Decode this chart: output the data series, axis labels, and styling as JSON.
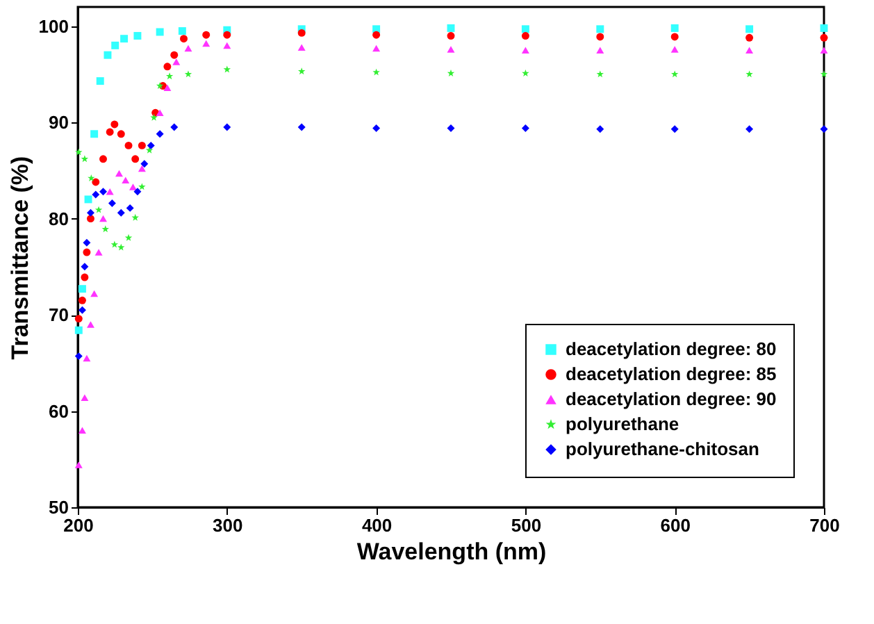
{
  "chart_data": {
    "type": "scatter",
    "xlabel": "Wavelength (nm)",
    "ylabel": "Transmittance (%)",
    "xlim": [
      200,
      700
    ],
    "ylim": [
      50,
      102
    ],
    "xticks": [
      200,
      300,
      400,
      500,
      600,
      700
    ],
    "yticks": [
      50,
      60,
      70,
      80,
      90,
      100
    ],
    "grid": false,
    "legend": "bottom right",
    "series": [
      {
        "name": "deacetylation degree: 80",
        "color": "#33ffff",
        "marker": "square",
        "x": [
          200.6,
          203,
          207,
          211,
          215,
          220,
          225,
          231,
          240,
          255,
          270,
          300,
          350,
          400,
          450,
          500,
          550,
          600,
          650,
          700
        ],
        "values": [
          68.4,
          72.7,
          82,
          88.8,
          94.3,
          97,
          98,
          98.7,
          99,
          99.4,
          99.5,
          99.6,
          99.7,
          99.7,
          99.8,
          99.7,
          99.7,
          99.8,
          99.7,
          99.8
        ]
      },
      {
        "name": "deacetylation degree: 85",
        "color": "#ff0000",
        "marker": "circle",
        "x": [
          200.6,
          203,
          204.6,
          206,
          208.6,
          212,
          217,
          221.5,
          224.6,
          229,
          234,
          238.5,
          243,
          252,
          257,
          260,
          264.6,
          271,
          286,
          300,
          350,
          400,
          450,
          500,
          550,
          600,
          650,
          700
        ],
        "values": [
          69.6,
          71.5,
          73.9,
          76.5,
          80,
          83.8,
          86.2,
          89,
          89.8,
          88.8,
          87.6,
          86.2,
          87.6,
          91,
          93.8,
          95.8,
          97,
          98.7,
          99.1,
          99.1,
          99.3,
          99.1,
          99,
          99,
          98.9,
          98.9,
          98.8,
          98.8
        ]
      },
      {
        "name": "deacetylation degree: 90",
        "color": "#ff33ff",
        "marker": "triangle",
        "x": [
          200.6,
          203,
          204.6,
          206,
          208.6,
          211,
          214,
          217,
          221.5,
          227.7,
          232,
          237,
          243,
          249,
          255,
          260,
          266,
          274,
          286,
          300,
          350,
          400,
          450,
          500,
          550,
          600,
          650,
          700
        ],
        "values": [
          54.4,
          58,
          61.4,
          65.5,
          69,
          72.2,
          76.5,
          80,
          82.8,
          84.7,
          84,
          83.3,
          85.2,
          null,
          91,
          93.6,
          96.3,
          97.7,
          98.2,
          98,
          97.8,
          97.7,
          97.6,
          97.5,
          97.5,
          97.6,
          97.5,
          97.5
        ]
      },
      {
        "name": "polyurethane",
        "color": "#33ee33",
        "marker": "star",
        "x": [
          200.6,
          204.6,
          209,
          214,
          218.5,
          224.6,
          229,
          234,
          238.5,
          243,
          248,
          251,
          255,
          261.5,
          274,
          300,
          350,
          400,
          450,
          500,
          550,
          600,
          650,
          700
        ],
        "values": [
          86.9,
          86.2,
          84.2,
          80.9,
          78.9,
          77.3,
          77,
          78,
          80.1,
          83.3,
          87.1,
          90.5,
          93.8,
          94.8,
          95,
          95.5,
          95.3,
          95.2,
          95.1,
          95.1,
          95,
          95,
          95,
          95
        ]
      },
      {
        "name": "polyurethane-chitosan",
        "color": "#0000ff",
        "marker": "diamond",
        "x": [
          200.6,
          203,
          204.6,
          206,
          208.6,
          212,
          217,
          223,
          229,
          235,
          240,
          244.6,
          249,
          255,
          264.6,
          300,
          350,
          400,
          450,
          500,
          550,
          600,
          650,
          700
        ],
        "values": [
          65.7,
          70.5,
          75,
          77.5,
          80.6,
          82.5,
          82.8,
          81.6,
          80.6,
          81.1,
          82.8,
          85.7,
          87.6,
          88.8,
          89.5,
          89.5,
          89.5,
          89.4,
          89.4,
          89.4,
          89.3,
          89.3,
          89.3,
          89.3
        ]
      }
    ]
  }
}
